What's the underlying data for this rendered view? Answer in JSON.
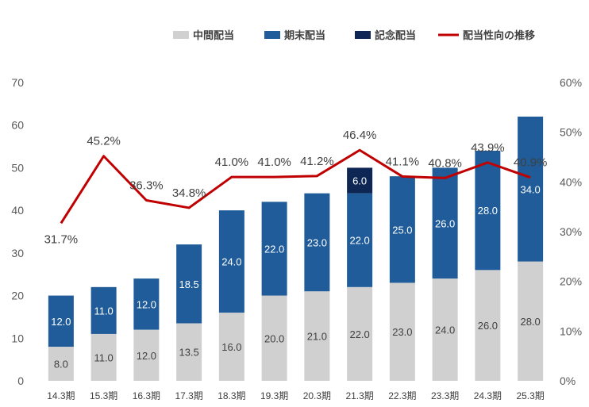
{
  "chart_data": {
    "type": "bar",
    "stacked": true,
    "categories": [
      "14.3期",
      "15.3期",
      "16.3期",
      "17.3期",
      "18.3期",
      "19.3期",
      "20.3期",
      "21.3期",
      "22.3期",
      "23.3期",
      "24.3期",
      "25.3期"
    ],
    "series": [
      {
        "name": "中間配当",
        "values": [
          8.0,
          11.0,
          12.0,
          13.5,
          16.0,
          20.0,
          21.0,
          22.0,
          23.0,
          24.0,
          26.0,
          28.0
        ],
        "labels": [
          "8.0",
          "11.0",
          "12.0",
          "13.5",
          "16.0",
          "20.0",
          "21.0",
          "22.0",
          "23.0",
          "24.0",
          "26.0",
          "28.0"
        ],
        "color": "#d0d0d0",
        "label_color": "#404040"
      },
      {
        "name": "期末配当",
        "values": [
          12.0,
          11.0,
          12.0,
          18.5,
          24.0,
          22.0,
          23.0,
          22.0,
          25.0,
          26.0,
          28.0,
          34.0
        ],
        "labels": [
          "12.0",
          "11.0",
          "12.0",
          "18.5",
          "24.0",
          "22.0",
          "23.0",
          "22.0",
          "25.0",
          "26.0",
          "28.0",
          "34.0"
        ],
        "color": "#1f5c99",
        "label_color": "#ffffff"
      },
      {
        "name": "記念配当",
        "values": [
          0,
          0,
          0,
          0,
          0,
          0,
          0,
          6.0,
          0,
          0,
          0,
          0
        ],
        "labels": [
          "",
          "",
          "",
          "",
          "",
          "",
          "",
          "6.0",
          "",
          "",
          "",
          ""
        ],
        "color": "#0d2654",
        "label_color": "#ffffff"
      }
    ],
    "line_series": {
      "name": "配当性向の推移",
      "values": [
        31.7,
        45.2,
        36.3,
        34.8,
        41.0,
        41.0,
        41.2,
        46.4,
        41.1,
        40.8,
        43.9,
        40.9
      ],
      "labels": [
        "31.7%",
        "45.2%",
        "36.3%",
        "34.8%",
        "41.0%",
        "41.0%",
        "41.2%",
        "46.4%",
        "41.1%",
        "40.8%",
        "43.9%",
        "40.9%"
      ],
      "color": "#c00000",
      "axis": "right"
    },
    "ylim": [
      0,
      70
    ],
    "y_ticks": [
      "0",
      "10",
      "20",
      "30",
      "40",
      "50",
      "60",
      "70"
    ],
    "y2lim": [
      0,
      60
    ],
    "y2_ticks": [
      "0%",
      "10%",
      "20%",
      "30%",
      "40%",
      "50%",
      "60%"
    ],
    "grid": false,
    "legend_position": "top-right"
  }
}
